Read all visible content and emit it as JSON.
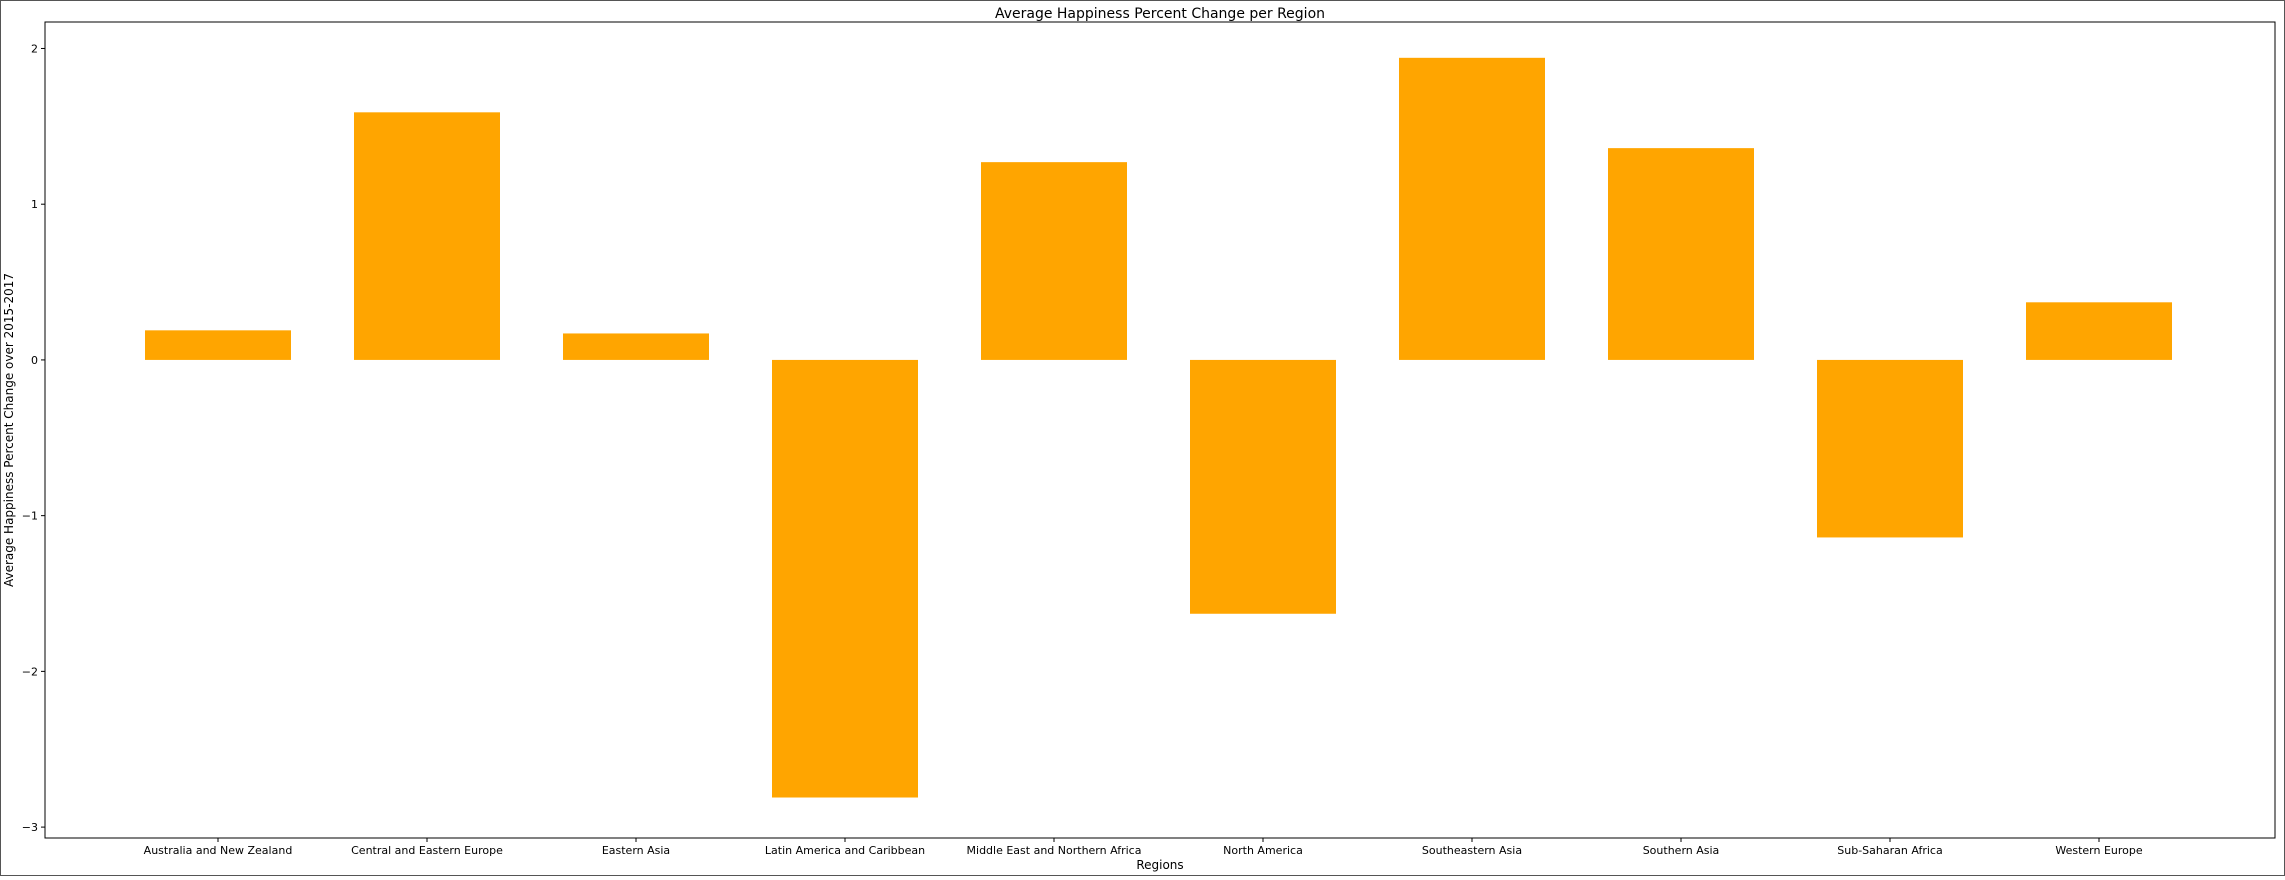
{
  "chart_data": {
    "type": "bar",
    "title": "Average Happiness Percent Change per Region",
    "xlabel": "Regions",
    "ylabel": "Average Happiness Percent Change over 2015-2017",
    "categories": [
      "Australia and New Zealand",
      "Central and Eastern Europe",
      "Eastern Asia",
      "Latin America and Caribbean",
      "Middle East and Northern Africa",
      "North America",
      "Southeastern Asia",
      "Southern Asia",
      "Sub-Saharan Africa",
      "Western Europe"
    ],
    "values": [
      0.19,
      1.59,
      0.17,
      -2.81,
      1.27,
      -1.63,
      1.94,
      1.36,
      -1.14,
      0.37
    ],
    "ylim": [
      -3.07,
      2.17
    ],
    "yticks": [
      -3,
      -2,
      -1,
      0,
      1,
      2
    ],
    "ytick_labels": [
      "−3",
      "−2",
      "−1",
      "0",
      "1",
      "2"
    ],
    "bar_color": "#ffa500",
    "grid": false,
    "legend": "none"
  }
}
